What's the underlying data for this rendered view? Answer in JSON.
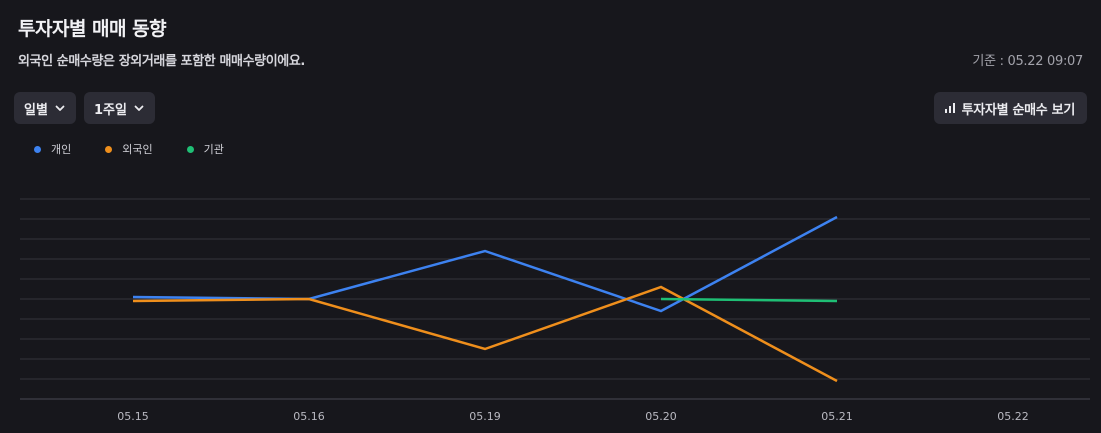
{
  "header": {
    "title": "투자자별 매매 동향",
    "subtitle": "외국인 순매수량은 장외거래를 포함한 매매수량이에요.",
    "timestamp": "기준 : 05.22 09:07"
  },
  "controls": {
    "period_select": "일별",
    "range_select": "1주일",
    "net_buy_button": "투자자별 순매수 보기"
  },
  "icons": {
    "dropdown": "chevron-down-icon",
    "net_buy": "bar-chart-icon"
  },
  "chart_data": {
    "type": "line",
    "categories": [
      "05.15",
      "05.16",
      "05.19",
      "05.20",
      "05.21",
      "05.22"
    ],
    "ylim": [
      -5,
      5
    ],
    "grid": true,
    "legend_position": "top-left",
    "series": [
      {
        "name": "개인",
        "color": "#3d82f0",
        "values": [
          0.1,
          0,
          2.4,
          -0.6,
          4.1,
          null
        ]
      },
      {
        "name": "외국인",
        "color": "#ef8f1c",
        "values": [
          -0.1,
          0,
          -2.5,
          0.6,
          -4.1,
          null
        ]
      },
      {
        "name": "기관",
        "color": "#1fbf75",
        "values": [
          null,
          null,
          null,
          0,
          -0.1,
          null
        ]
      }
    ]
  }
}
